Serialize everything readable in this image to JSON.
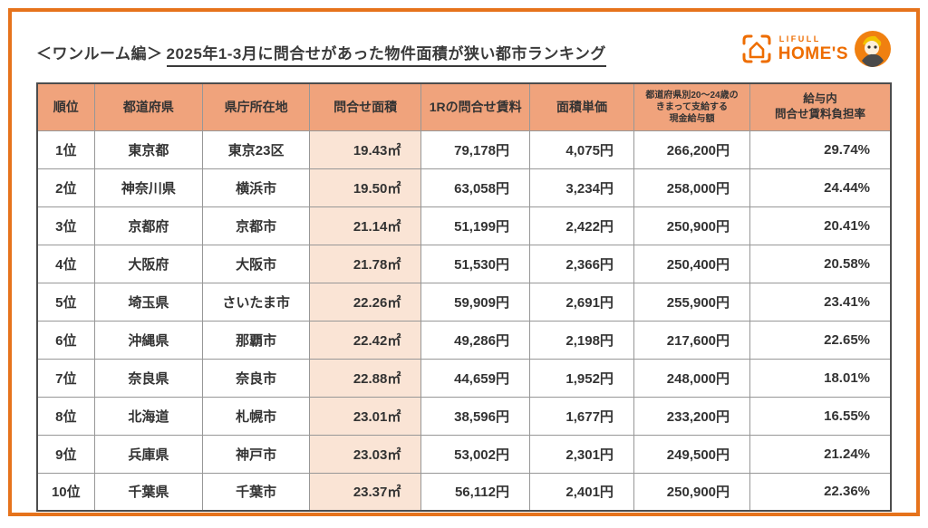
{
  "title": {
    "prefix": "＜ワンルーム編＞",
    "main": "2025年1-3月に問合せがあった物件面積が狭い都市ランキング"
  },
  "logo": {
    "brand_top": "LIFULL",
    "brand_bottom": "HOME'S",
    "orange": "#EE6D00"
  },
  "colors": {
    "card_border": "#E6731C",
    "header_bg": "#F0A37C",
    "highlight_column_bg": "#FAE4D5",
    "text": "#333333"
  },
  "chart_data": {
    "type": "table",
    "title": "＜ワンルーム編＞ 2025年1-3月に問合せがあった物件面積が狭い都市ランキング",
    "columns": [
      "順位",
      "都道府県",
      "県庁所在地",
      "問合せ面積",
      "1Rの問合せ賃料",
      "面積単価",
      "都道府県別20〜24歳の\nきまって支給する\n現金給与額",
      "給与内\n問合せ賃料負担率"
    ],
    "rows": [
      [
        "1位",
        "東京都",
        "東京23区",
        "19.43㎡",
        "79,178円",
        "4,075円",
        "266,200円",
        "29.74%"
      ],
      [
        "2位",
        "神奈川県",
        "横浜市",
        "19.50㎡",
        "63,058円",
        "3,234円",
        "258,000円",
        "24.44%"
      ],
      [
        "3位",
        "京都府",
        "京都市",
        "21.14㎡",
        "51,199円",
        "2,422円",
        "250,900円",
        "20.41%"
      ],
      [
        "4位",
        "大阪府",
        "大阪市",
        "21.78㎡",
        "51,530円",
        "2,366円",
        "250,400円",
        "20.58%"
      ],
      [
        "5位",
        "埼玉県",
        "さいたま市",
        "22.26㎡",
        "59,909円",
        "2,691円",
        "255,900円",
        "23.41%"
      ],
      [
        "6位",
        "沖縄県",
        "那覇市",
        "22.42㎡",
        "49,286円",
        "2,198円",
        "217,600円",
        "22.65%"
      ],
      [
        "7位",
        "奈良県",
        "奈良市",
        "22.88㎡",
        "44,659円",
        "1,952円",
        "248,000円",
        "18.01%"
      ],
      [
        "8位",
        "北海道",
        "札幌市",
        "23.01㎡",
        "38,596円",
        "1,677円",
        "233,200円",
        "16.55%"
      ],
      [
        "9位",
        "兵庫県",
        "神戸市",
        "23.03㎡",
        "53,002円",
        "2,301円",
        "249,500円",
        "21.24%"
      ],
      [
        "10位",
        "千葉県",
        "千葉市",
        "23.37㎡",
        "56,112円",
        "2,401円",
        "250,900円",
        "22.36%"
      ]
    ]
  }
}
